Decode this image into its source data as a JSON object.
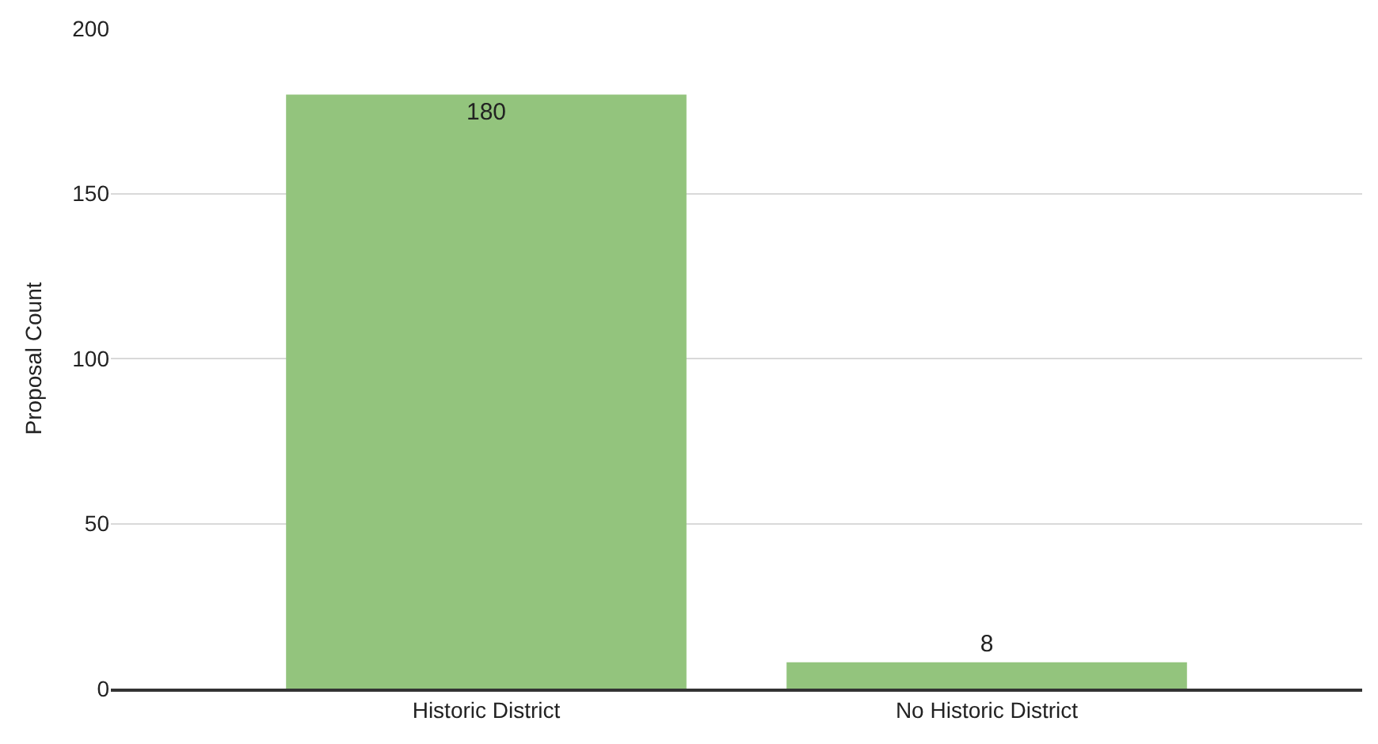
{
  "chart_data": {
    "type": "bar",
    "ylabel": "Proposal Count",
    "categories": [
      "Historic District",
      "No Historic District"
    ],
    "values": [
      180,
      8
    ],
    "color": "#93c47d",
    "ylim": [
      0,
      200
    ],
    "yticks": [
      0,
      50,
      100,
      150,
      200
    ],
    "grid": "y",
    "data_labels": true
  }
}
